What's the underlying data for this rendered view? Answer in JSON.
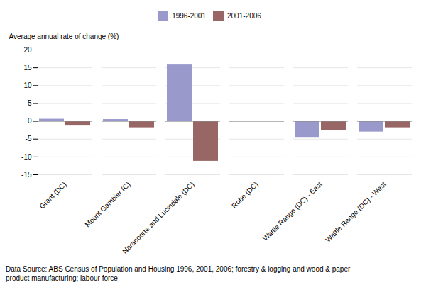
{
  "chart_data": {
    "type": "bar",
    "categories": [
      "Grant (DC)",
      "Mount Gambier (C)",
      "Naracoorte and Lucindale (DC)",
      "Robe (DC)",
      "Wattle Range (DC) - East",
      "Wattle Range (DC) - West"
    ],
    "series": [
      {
        "name": "1996-2001",
        "color": "#9999cc",
        "values": [
          0.6,
          0.5,
          16.0,
          0.0,
          -4.5,
          -3.0
        ]
      },
      {
        "name": "2001-2006",
        "color": "#996666",
        "values": [
          -1.3,
          -1.8,
          -11.2,
          0.0,
          -2.5,
          -1.8
        ]
      }
    ],
    "ylabel": "Average annual rate of change (%)",
    "ylim": [
      -15,
      20
    ],
    "yticks": [
      -15,
      -10,
      -5,
      0,
      5,
      10,
      15,
      20
    ],
    "grid": true,
    "legend": "top",
    "note": "Data Source: ABS Census of Population and Housing 1996, 2001, 2006; forestry & logging and wood & paper\nproduct manufacturing; labour force"
  }
}
